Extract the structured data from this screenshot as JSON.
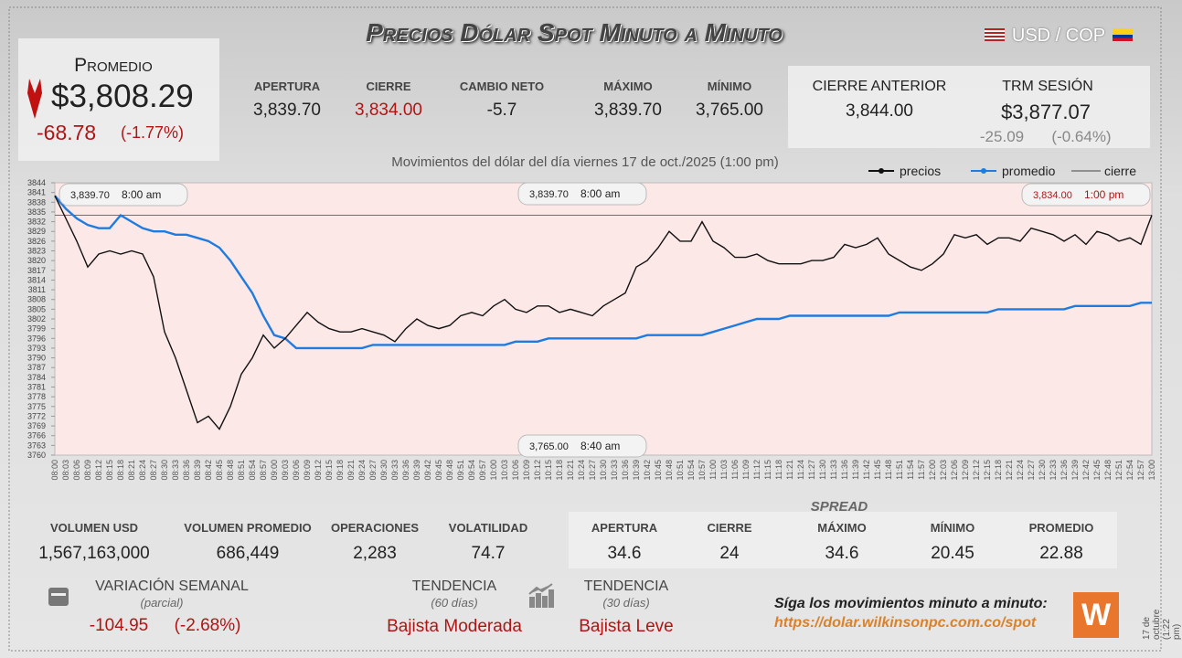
{
  "header": {
    "title": "Precios Dólar Spot Minuto a Minuto",
    "pair": "USD / COP"
  },
  "average": {
    "label": "Promedio",
    "value": "$3,808.29",
    "change": "-68.78",
    "change_pct": "(-1.77%)"
  },
  "session": [
    {
      "label": "APERTURA",
      "value": "3,839.70"
    },
    {
      "label": "CIERRE",
      "value": "3,834.00"
    },
    {
      "label": "CAMBIO NETO",
      "value": "-5.7"
    },
    {
      "label": "MÁXIMO",
      "value": "3,839.70"
    },
    {
      "label": "MÍNIMO",
      "value": "3,765.00"
    }
  ],
  "previous": {
    "close_label": "CIERRE ANTERIOR",
    "close": "3,844.00",
    "trm_label": "TRM SESIÓN",
    "trm": "$3,877.07",
    "trm_change": "-25.09",
    "trm_change_pct": "(-0.64%)"
  },
  "chart_data": {
    "type": "line",
    "title": "Movimientos del dólar del día viernes 17 de oct./2025 (1:00 pm)",
    "categories": [
      "08:00",
      "08:03",
      "08:06",
      "08:09",
      "08:12",
      "08:15",
      "08:18",
      "08:21",
      "08:24",
      "08:27",
      "08:30",
      "08:33",
      "08:36",
      "08:39",
      "08:42",
      "08:45",
      "08:48",
      "08:51",
      "08:54",
      "08:57",
      "09:00",
      "09:03",
      "09:06",
      "09:09",
      "09:12",
      "09:15",
      "09:18",
      "09:21",
      "09:24",
      "09:27",
      "09:30",
      "09:33",
      "09:36",
      "09:39",
      "09:42",
      "09:45",
      "09:48",
      "09:51",
      "09:54",
      "09:57",
      "10:00",
      "10:03",
      "10:06",
      "10:09",
      "10:12",
      "10:15",
      "10:18",
      "10:21",
      "10:24",
      "10:27",
      "10:30",
      "10:33",
      "10:36",
      "10:39",
      "10:42",
      "10:45",
      "10:48",
      "10:51",
      "10:54",
      "10:57",
      "11:00",
      "11:03",
      "11:06",
      "11:09",
      "11:12",
      "11:15",
      "11:18",
      "11:21",
      "11:24",
      "11:27",
      "11:30",
      "11:33",
      "11:36",
      "11:39",
      "11:42",
      "11:45",
      "11:48",
      "11:51",
      "11:54",
      "11:57",
      "12:00",
      "12:03",
      "12:06",
      "12:09",
      "12:12",
      "12:15",
      "12:18",
      "12:21",
      "12:24",
      "12:27",
      "12:30",
      "12:33",
      "12:36",
      "12:39",
      "12:42",
      "12:45",
      "12:48",
      "12:51",
      "12:54",
      "12:57",
      "13:00"
    ],
    "series": [
      {
        "name": "precios",
        "color": "#111111",
        "values": [
          3840,
          3833,
          3826,
          3818,
          3822,
          3823,
          3822,
          3823,
          3822,
          3815,
          3798,
          3790,
          3780,
          3770,
          3772,
          3768,
          3775,
          3785,
          3790,
          3797,
          3793,
          3796,
          3800,
          3804,
          3801,
          3799,
          3798,
          3798,
          3799,
          3798,
          3797,
          3795,
          3799,
          3802,
          3800,
          3799,
          3800,
          3803,
          3804,
          3803,
          3806,
          3808,
          3805,
          3804,
          3806,
          3806,
          3804,
          3805,
          3804,
          3803,
          3806,
          3808,
          3810,
          3818,
          3820,
          3824,
          3829,
          3826,
          3826,
          3832,
          3826,
          3824,
          3821,
          3821,
          3822,
          3820,
          3819,
          3819,
          3819,
          3820,
          3820,
          3821,
          3825,
          3824,
          3825,
          3827,
          3822,
          3820,
          3818,
          3817,
          3819,
          3822,
          3828,
          3827,
          3828,
          3825,
          3827,
          3827,
          3826,
          3830,
          3829,
          3828,
          3826,
          3828,
          3825,
          3829,
          3828,
          3826,
          3827,
          3825,
          3834
        ]
      },
      {
        "name": "promedio",
        "color": "#1e7be0",
        "values": [
          3840,
          3836,
          3833,
          3831,
          3830,
          3830,
          3834,
          3832,
          3830,
          3829,
          3829,
          3828,
          3828,
          3827,
          3826,
          3824,
          3820,
          3815,
          3810,
          3803,
          3797,
          3796,
          3793,
          3793,
          3793,
          3793,
          3793,
          3793,
          3793,
          3794,
          3794,
          3794,
          3794,
          3794,
          3794,
          3794,
          3794,
          3794,
          3794,
          3794,
          3794,
          3794,
          3795,
          3795,
          3795,
          3796,
          3796,
          3796,
          3796,
          3796,
          3796,
          3796,
          3796,
          3796,
          3797,
          3797,
          3797,
          3797,
          3797,
          3797,
          3798,
          3799,
          3800,
          3801,
          3802,
          3802,
          3802,
          3803,
          3803,
          3803,
          3803,
          3803,
          3803,
          3803,
          3803,
          3803,
          3803,
          3804,
          3804,
          3804,
          3804,
          3804,
          3804,
          3804,
          3804,
          3804,
          3805,
          3805,
          3805,
          3805,
          3805,
          3805,
          3805,
          3806,
          3806,
          3806,
          3806,
          3806,
          3806,
          3807,
          3807
        ]
      }
    ],
    "reference_lines": [
      {
        "name": "cierre",
        "value": 3834,
        "color": "#444444"
      }
    ],
    "ylim": [
      3760,
      3844
    ],
    "yticks": [
      3760,
      3763,
      3766,
      3769,
      3772,
      3775,
      3778,
      3781,
      3784,
      3787,
      3790,
      3793,
      3796,
      3799,
      3802,
      3805,
      3808,
      3811,
      3814,
      3817,
      3820,
      3823,
      3826,
      3829,
      3832,
      3835,
      3838,
      3841,
      3844
    ],
    "annotations": [
      {
        "value": "3,839.70",
        "time": "8:00 am"
      },
      {
        "value": "3,839.70",
        "time": "8:00 am"
      },
      {
        "value": "3,834.00",
        "time": "1:00 pm"
      },
      {
        "value": "3,765.00",
        "time": "8:40 am"
      }
    ]
  },
  "volume": [
    {
      "label": "VOLUMEN USD",
      "value": "1,567,163,000"
    },
    {
      "label": "VOLUMEN PROMEDIO",
      "value": "686,449"
    },
    {
      "label": "OPERACIONES",
      "value": "2,283"
    },
    {
      "label": "VOLATILIDAD",
      "value": "74.7"
    }
  ],
  "spread": {
    "title": "SPREAD",
    "items": [
      {
        "label": "APERTURA",
        "value": "34.6"
      },
      {
        "label": "CIERRE",
        "value": "24"
      },
      {
        "label": "MÁXIMO",
        "value": "34.6"
      },
      {
        "label": "MÍNIMO",
        "value": "20.45"
      },
      {
        "label": "PROMEDIO",
        "value": "22.88"
      }
    ]
  },
  "weekly": {
    "label": "VARIACIÓN SEMANAL",
    "note": "(parcial)",
    "change": "-104.95",
    "change_pct": "(-2.68%)"
  },
  "trends": [
    {
      "label": "TENDENCIA",
      "period": "(60 días)",
      "value": "Bajista Moderada"
    },
    {
      "label": "TENDENCIA",
      "period": "(30 días)",
      "value": "Bajista Leve"
    }
  ],
  "footer": {
    "prompt": "Síga los movimientos minuto a minuto:",
    "url": "https://dolar.wilkinsonpc.com.co/spot",
    "timestamp": "17 de octubre (1:22 pm)"
  }
}
